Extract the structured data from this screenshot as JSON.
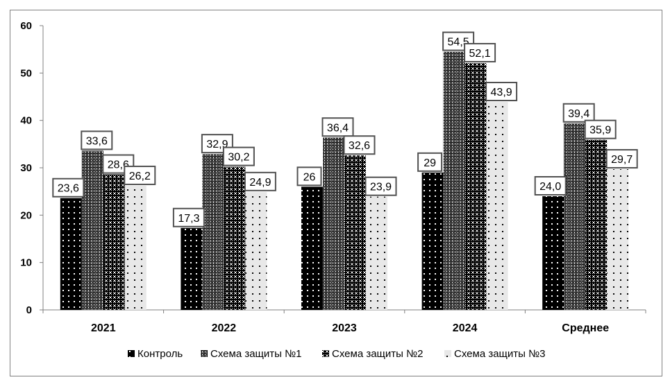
{
  "chart_data": {
    "type": "bar",
    "title": "",
    "xlabel": "",
    "ylabel": "",
    "ylim": [
      0,
      60
    ],
    "yticks": [
      0,
      10,
      20,
      30,
      40,
      50,
      60
    ],
    "grid": false,
    "legend_position": "bottom",
    "categories": [
      "2021",
      "2022",
      "2023",
      "2024",
      "Среднее"
    ],
    "series": [
      {
        "name": "Контроль",
        "pattern": "black-dots",
        "values": [
          23.6,
          17.3,
          26,
          29,
          24.0
        ],
        "labels": [
          "23,6",
          "17,3",
          "26",
          "29",
          "24,0"
        ]
      },
      {
        "name": "Схема защиты №1",
        "pattern": "dense-checker",
        "values": [
          33.6,
          32.9,
          36.4,
          54.5,
          39.4
        ],
        "labels": [
          "33,6",
          "32,9",
          "36,4",
          "54,5",
          "39,4"
        ]
      },
      {
        "name": "Схема защиты №2",
        "pattern": "dark-checker",
        "values": [
          28.6,
          30.2,
          32.6,
          52.1,
          35.9
        ],
        "labels": [
          "28,6",
          "30,2",
          "32,6",
          "52,1",
          "35,9"
        ]
      },
      {
        "name": "Схема защиты №3",
        "pattern": "light-dots",
        "values": [
          26.2,
          24.9,
          23.9,
          43.9,
          29.7
        ],
        "labels": [
          "26,2",
          "24,9",
          "23,9",
          "43,9",
          "29,7"
        ]
      }
    ],
    "colors": {
      "axis": "#808080",
      "frame": "#808080",
      "label_border": "#505050",
      "light_fill": "#e8e8e8"
    }
  }
}
